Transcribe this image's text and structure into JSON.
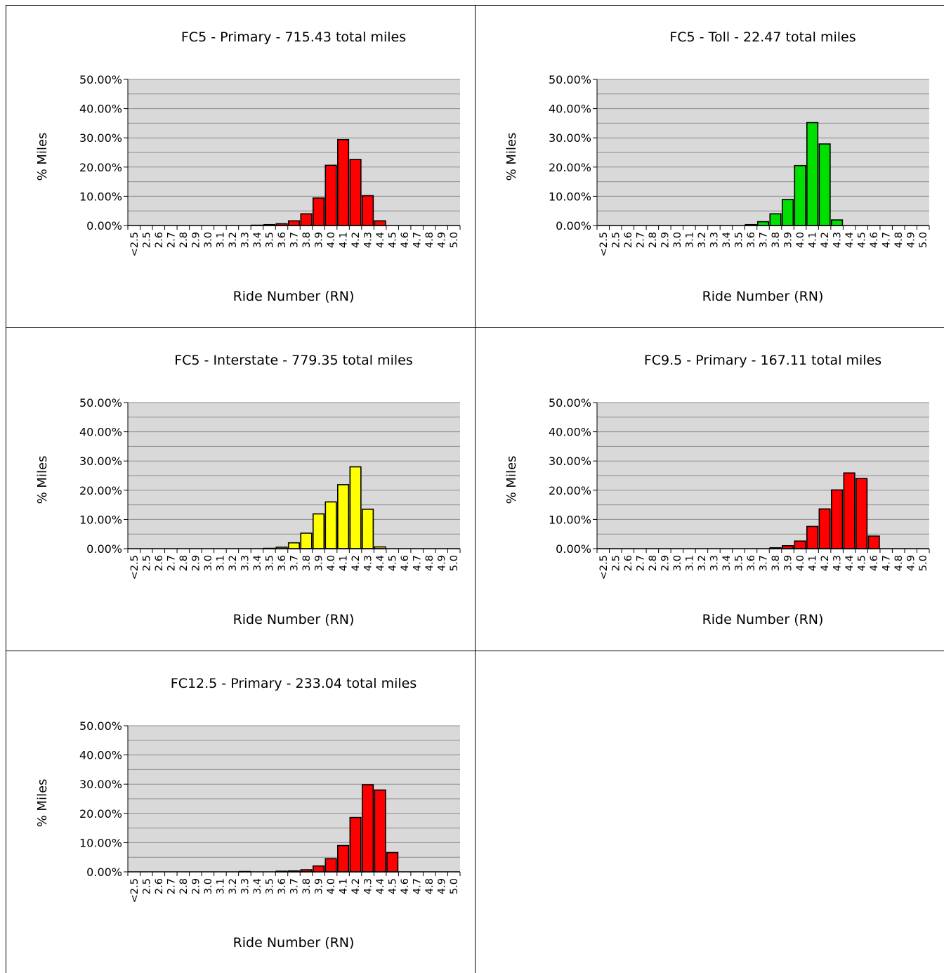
{
  "chart_data": [
    {
      "type": "bar",
      "title": "FC5 - Primary - 715.43 total miles",
      "xlabel": "Ride Number (RN)",
      "ylabel": "% Miles",
      "ylim": [
        0,
        50
      ],
      "yticks": [
        "0.00%",
        "10.00%",
        "20.00%",
        "30.00%",
        "40.00%",
        "50.00%"
      ],
      "categories": [
        "<2.5",
        "2.5",
        "2.6",
        "2.7",
        "2.8",
        "2.9",
        "3.0",
        "3.1",
        "3.2",
        "3.3",
        "3.4",
        "3.5",
        "3.6",
        "3.7",
        "3.8",
        "3.9",
        "4.0",
        "4.1",
        "4.2",
        "4.3",
        "4.4",
        "4.5",
        "4.6",
        "4.7",
        "4.8",
        "4.9",
        "5.0"
      ],
      "values": [
        0,
        0,
        0,
        0,
        0,
        0,
        0,
        0,
        0,
        0,
        0.1,
        0.3,
        0.6,
        1.6,
        4.0,
        9.4,
        20.6,
        29.4,
        22.6,
        10.2,
        1.6,
        0,
        0,
        0,
        0,
        0,
        0
      ],
      "color": "#ff0000",
      "grid": true
    },
    {
      "type": "bar",
      "title": "FC5 - Toll - 22.47 total miles",
      "xlabel": "Ride Number (RN)",
      "ylabel": "% Miles",
      "ylim": [
        0,
        50
      ],
      "yticks": [
        "0.00%",
        "10.00%",
        "20.00%",
        "30.00%",
        "40.00%",
        "50.00%"
      ],
      "categories": [
        "<2.5",
        "2.5",
        "2.6",
        "2.7",
        "2.8",
        "2.9",
        "3.0",
        "3.1",
        "3.2",
        "3.3",
        "3.4",
        "3.5",
        "3.6",
        "3.7",
        "3.8",
        "3.9",
        "4.0",
        "4.1",
        "4.2",
        "4.3",
        "4.4",
        "4.5",
        "4.6",
        "4.7",
        "4.8",
        "4.9",
        "5.0"
      ],
      "values": [
        0,
        0,
        0,
        0,
        0,
        0,
        0,
        0,
        0,
        0,
        0,
        0,
        0.3,
        1.3,
        4.0,
        8.9,
        20.5,
        35.2,
        27.9,
        1.9,
        0,
        0,
        0,
        0,
        0,
        0,
        0
      ],
      "color": "#00e000",
      "grid": true
    },
    {
      "type": "bar",
      "title": "FC5 - Interstate - 779.35 total miles",
      "xlabel": "Ride Number (RN)",
      "ylabel": "% Miles",
      "ylim": [
        0,
        50
      ],
      "yticks": [
        "0.00%",
        "10.00%",
        "20.00%",
        "30.00%",
        "40.00%",
        "50.00%"
      ],
      "categories": [
        "<2.5",
        "2.5",
        "2.6",
        "2.7",
        "2.8",
        "2.9",
        "3.0",
        "3.1",
        "3.2",
        "3.3",
        "3.4",
        "3.5",
        "3.6",
        "3.7",
        "3.8",
        "3.9",
        "4.0",
        "4.1",
        "4.2",
        "4.3",
        "4.4",
        "4.5",
        "4.6",
        "4.7",
        "4.8",
        "4.9",
        "5.0"
      ],
      "values": [
        0,
        0,
        0,
        0,
        0,
        0,
        0,
        0,
        0,
        0,
        0,
        0.1,
        0.5,
        2.0,
        5.3,
        11.9,
        16.0,
        21.9,
        28.0,
        13.5,
        0.6,
        0,
        0,
        0,
        0,
        0,
        0
      ],
      "color": "#ffff00",
      "grid": true
    },
    {
      "type": "bar",
      "title": "FC9.5 - Primary - 167.11 total miles",
      "xlabel": "Ride Number (RN)",
      "ylabel": "% Miles",
      "ylim": [
        0,
        50
      ],
      "yticks": [
        "0.00%",
        "10.00%",
        "20.00%",
        "30.00%",
        "40.00%",
        "50.00%"
      ],
      "categories": [
        "<2.5",
        "2.5",
        "2.6",
        "2.7",
        "2.8",
        "2.9",
        "3.0",
        "3.1",
        "3.2",
        "3.3",
        "3.4",
        "3.5",
        "3.6",
        "3.7",
        "3.8",
        "3.9",
        "4.0",
        "4.1",
        "4.2",
        "4.3",
        "4.4",
        "4.5",
        "4.6",
        "4.7",
        "4.8",
        "4.9",
        "5.0"
      ],
      "values": [
        0,
        0,
        0,
        0,
        0,
        0,
        0,
        0,
        0,
        0,
        0,
        0,
        0,
        0,
        0.3,
        1.0,
        2.6,
        7.6,
        13.6,
        20.1,
        25.9,
        24.0,
        4.3,
        0,
        0,
        0,
        0
      ],
      "color": "#ff0000",
      "grid": true
    },
    {
      "type": "bar",
      "title": "FC12.5 - Primary - 233.04 total miles",
      "xlabel": "Ride Number (RN)",
      "ylabel": "% Miles",
      "ylim": [
        0,
        50
      ],
      "yticks": [
        "0.00%",
        "10.00%",
        "20.00%",
        "30.00%",
        "40.00%",
        "50.00%"
      ],
      "categories": [
        "<2.5",
        "2.5",
        "2.6",
        "2.7",
        "2.8",
        "2.9",
        "3.0",
        "3.1",
        "3.2",
        "3.3",
        "3.4",
        "3.5",
        "3.6",
        "3.7",
        "3.8",
        "3.9",
        "4.0",
        "4.1",
        "4.2",
        "4.3",
        "4.4",
        "4.5",
        "4.6",
        "4.7",
        "4.8",
        "4.9",
        "5.0"
      ],
      "values": [
        0,
        0,
        0,
        0,
        0,
        0,
        0,
        0,
        0,
        0.1,
        0,
        0,
        0.2,
        0.3,
        0.7,
        2.0,
        4.5,
        9.0,
        18.6,
        29.8,
        28.0,
        6.6,
        0,
        0,
        0,
        0,
        0
      ],
      "color": "#ff0000",
      "grid": true
    }
  ]
}
